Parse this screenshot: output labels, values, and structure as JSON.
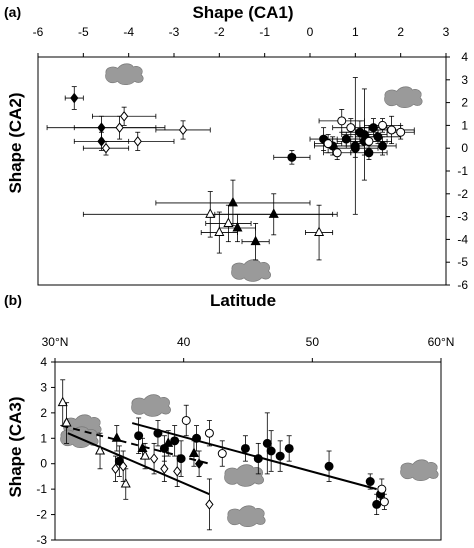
{
  "chart_data": [
    {
      "panel_label": "(a)",
      "type": "scatter",
      "xlabel": "Shape (CA1)",
      "ylabel": "Shape (CA2)",
      "xlim": [
        -6,
        3
      ],
      "ylim": [
        -6,
        4
      ],
      "x_ticks": [
        "-6",
        "-5",
        "-4",
        "-3",
        "-2",
        "-1",
        "0",
        "1",
        "2",
        "3"
      ],
      "y_ticks": [
        "4",
        "3",
        "2",
        "1",
        "0",
        "-1",
        "-2",
        "-3",
        "-4",
        "-5",
        "-6"
      ],
      "grid": false,
      "series": [
        {
          "marker": "filled-diamond",
          "points": [
            {
              "x": -5.2,
              "y": 2.2,
              "xerr": 0.2,
              "yerr": 0.5
            },
            {
              "x": -4.6,
              "y": 0.9,
              "xerr": 1.2,
              "yerr": 0.5
            },
            {
              "x": -4.6,
              "y": 0.3,
              "xerr": 0.6,
              "yerr": 0.4
            }
          ]
        },
        {
          "marker": "open-diamond",
          "points": [
            {
              "x": -4.1,
              "y": 1.4,
              "xerr": 0.7,
              "yerr": 0.4
            },
            {
              "x": -4.2,
              "y": 0.9,
              "xerr": 1.0,
              "yerr": 0.5
            },
            {
              "x": -3.8,
              "y": 0.3,
              "xerr": 0.8,
              "yerr": 0.4
            },
            {
              "x": -2.8,
              "y": 0.8,
              "xerr": 0.6,
              "yerr": 0.4
            },
            {
              "x": -4.5,
              "y": 0.0,
              "xerr": 0.5,
              "yerr": 0.3
            }
          ]
        },
        {
          "marker": "filled-triangle",
          "points": [
            {
              "x": -1.7,
              "y": -2.4,
              "xerr": 1.7,
              "yerr": 1.0
            },
            {
              "x": -0.8,
              "y": -2.9,
              "xerr": 1.3,
              "yerr": 0.9
            },
            {
              "x": -1.6,
              "y": -3.5,
              "xerr": 0.4,
              "yerr": 0.6
            },
            {
              "x": -1.2,
              "y": -4.1,
              "xerr": 0.3,
              "yerr": 0.8
            }
          ]
        },
        {
          "marker": "open-triangle",
          "points": [
            {
              "x": -2.2,
              "y": -2.9,
              "xerr": 2.8,
              "yerr": 1.0
            },
            {
              "x": -2.0,
              "y": -3.7,
              "xerr": 0.4,
              "yerr": 0.9
            },
            {
              "x": -1.8,
              "y": -3.3,
              "xerr": 0.5,
              "yerr": 0.8
            },
            {
              "x": 0.2,
              "y": -3.7,
              "xerr": 0.3,
              "yerr": 1.2
            }
          ]
        },
        {
          "marker": "filled-circle",
          "points": [
            {
              "x": -0.4,
              "y": -0.4,
              "xerr": 0.4,
              "yerr": 0.3
            },
            {
              "x": 0.3,
              "y": 0.4,
              "xerr": 0.3,
              "yerr": 0.5
            },
            {
              "x": 0.5,
              "y": 0.1,
              "xerr": 0.4,
              "yerr": 0.4
            },
            {
              "x": 0.8,
              "y": 0.4,
              "xerr": 0.3,
              "yerr": 0.3
            },
            {
              "x": 1.0,
              "y": 0.0,
              "xerr": 0.5,
              "yerr": 0.4
            },
            {
              "x": 1.1,
              "y": 0.7,
              "xerr": 0.4,
              "yerr": 0.5
            },
            {
              "x": 1.2,
              "y": 0.3,
              "xerr": 0.6,
              "yerr": 0.6
            },
            {
              "x": 1.3,
              "y": -0.2,
              "xerr": 0.4,
              "yerr": 0.3
            },
            {
              "x": 1.4,
              "y": 0.9,
              "xerr": 0.3,
              "yerr": 0.4
            },
            {
              "x": 1.5,
              "y": 0.5,
              "xerr": 0.5,
              "yerr": 0.3
            },
            {
              "x": 1.6,
              "y": 0.1,
              "xerr": 0.3,
              "yerr": 0.4
            },
            {
              "x": 1.2,
              "y": 0.6,
              "xerr": 0.5,
              "yerr": 2.0
            },
            {
              "x": 1.0,
              "y": 0.1,
              "xerr": 0.2,
              "yerr": 3.0
            }
          ]
        },
        {
          "marker": "open-circle",
          "points": [
            {
              "x": 0.7,
              "y": 1.2,
              "xerr": 0.5,
              "yerr": 0.5
            },
            {
              "x": 0.4,
              "y": 0.2,
              "xerr": 0.3,
              "yerr": 0.4
            },
            {
              "x": 0.9,
              "y": 0.9,
              "xerr": 0.4,
              "yerr": 0.4
            },
            {
              "x": 1.6,
              "y": 1.0,
              "xerr": 0.4,
              "yerr": 0.3
            },
            {
              "x": 1.8,
              "y": 0.8,
              "xerr": 0.5,
              "yerr": 0.6
            },
            {
              "x": 2.0,
              "y": 0.7,
              "xerr": 0.3,
              "yerr": 0.3
            },
            {
              "x": 1.3,
              "y": 0.3,
              "xerr": 0.4,
              "yerr": 0.3
            },
            {
              "x": 0.6,
              "y": -0.2,
              "xerr": 0.3,
              "yerr": 0.3
            }
          ]
        }
      ]
    },
    {
      "panel_label": "(b)",
      "type": "scatter",
      "xlabel": "Latitude",
      "ylabel": "Shape (CA3)",
      "xlim": [
        30,
        60
      ],
      "ylim": [
        -3,
        4
      ],
      "x_ticks": [
        "30°N",
        "40",
        "50",
        "60°N"
      ],
      "y_ticks": [
        "4",
        "3",
        "2",
        "1",
        "0",
        "-1",
        "-2",
        "-3"
      ],
      "grid": false,
      "series": [
        {
          "marker": "filled-circle",
          "points": [
            {
              "x": 35.0,
              "y": 0.1,
              "yerr": 0.6
            },
            {
              "x": 36.5,
              "y": 1.1,
              "yerr": 0.7
            },
            {
              "x": 38.0,
              "y": 1.2,
              "yerr": 0.5
            },
            {
              "x": 38.5,
              "y": 0.6,
              "yerr": 0.5
            },
            {
              "x": 39.3,
              "y": 0.9,
              "yerr": 0.6
            },
            {
              "x": 39.8,
              "y": 0.2,
              "yerr": 0.7
            },
            {
              "x": 41.0,
              "y": 1.0,
              "yerr": 0.5
            },
            {
              "x": 44.8,
              "y": 0.6,
              "yerr": 0.5
            },
            {
              "x": 45.8,
              "y": 0.2,
              "yerr": 0.6
            },
            {
              "x": 46.5,
              "y": 0.8,
              "yerr": 1.2
            },
            {
              "x": 46.8,
              "y": 0.5,
              "yerr": 0.8
            },
            {
              "x": 47.5,
              "y": 0.3,
              "yerr": 0.6
            },
            {
              "x": 48.2,
              "y": 0.6,
              "yerr": 0.5
            },
            {
              "x": 51.3,
              "y": -0.1,
              "yerr": 0.6
            },
            {
              "x": 54.5,
              "y": -0.7,
              "yerr": 0.3
            },
            {
              "x": 55.0,
              "y": -1.6,
              "yerr": 0.4
            },
            {
              "x": 55.3,
              "y": -1.2,
              "yerr": 0.3
            }
          ]
        },
        {
          "marker": "open-circle",
          "points": [
            {
              "x": 40.2,
              "y": 1.7,
              "yerr": 0.6
            },
            {
              "x": 42.0,
              "y": 1.2,
              "yerr": 0.5
            },
            {
              "x": 43.0,
              "y": 0.4,
              "yerr": 0.5
            },
            {
              "x": 55.4,
              "y": -1.0,
              "yerr": 0.4
            },
            {
              "x": 55.6,
              "y": -1.5,
              "yerr": 0.3
            }
          ]
        },
        {
          "marker": "filled-triangle",
          "points": [
            {
              "x": 34.8,
              "y": 1.0,
              "yerr": 0.5
            },
            {
              "x": 36.8,
              "y": 0.6,
              "yerr": 0.4
            },
            {
              "x": 38.8,
              "y": 0.8,
              "yerr": 0.5
            },
            {
              "x": 40.8,
              "y": 0.4,
              "yerr": 0.5
            }
          ]
        },
        {
          "marker": "open-triangle",
          "points": [
            {
              "x": 30.6,
              "y": 2.4,
              "yerr": 0.9
            },
            {
              "x": 30.9,
              "y": 1.6,
              "yerr": 0.8
            },
            {
              "x": 33.5,
              "y": 0.5,
              "yerr": 0.7
            },
            {
              "x": 35.5,
              "y": -0.8,
              "yerr": 0.6
            },
            {
              "x": 37.0,
              "y": 0.3,
              "yerr": 0.5
            }
          ]
        },
        {
          "marker": "open-diamond",
          "points": [
            {
              "x": 34.7,
              "y": -0.2,
              "yerr": 0.5
            },
            {
              "x": 35.3,
              "y": -0.1,
              "yerr": 0.6
            },
            {
              "x": 37.7,
              "y": 0.2,
              "yerr": 0.6
            },
            {
              "x": 38.5,
              "y": -0.2,
              "yerr": 0.5
            },
            {
              "x": 39.5,
              "y": -0.3,
              "yerr": 0.6
            },
            {
              "x": 42.0,
              "y": -1.6,
              "yerr": 1.0
            }
          ]
        },
        {
          "marker": "filled-diamond",
          "points": [
            {
              "x": 41.2,
              "y": 0.0,
              "yerr": 0.5
            }
          ]
        }
      ],
      "lines": [
        {
          "style": "solid",
          "x": [
            36.0,
            55.0
          ],
          "y": [
            1.6,
            -1.0
          ]
        },
        {
          "style": "dashed",
          "x": [
            30.5,
            42.0
          ],
          "y": [
            1.5,
            0.0
          ]
        },
        {
          "style": "solid",
          "x": [
            31.0,
            42.0
          ],
          "y": [
            1.2,
            -1.2
          ]
        }
      ]
    }
  ]
}
